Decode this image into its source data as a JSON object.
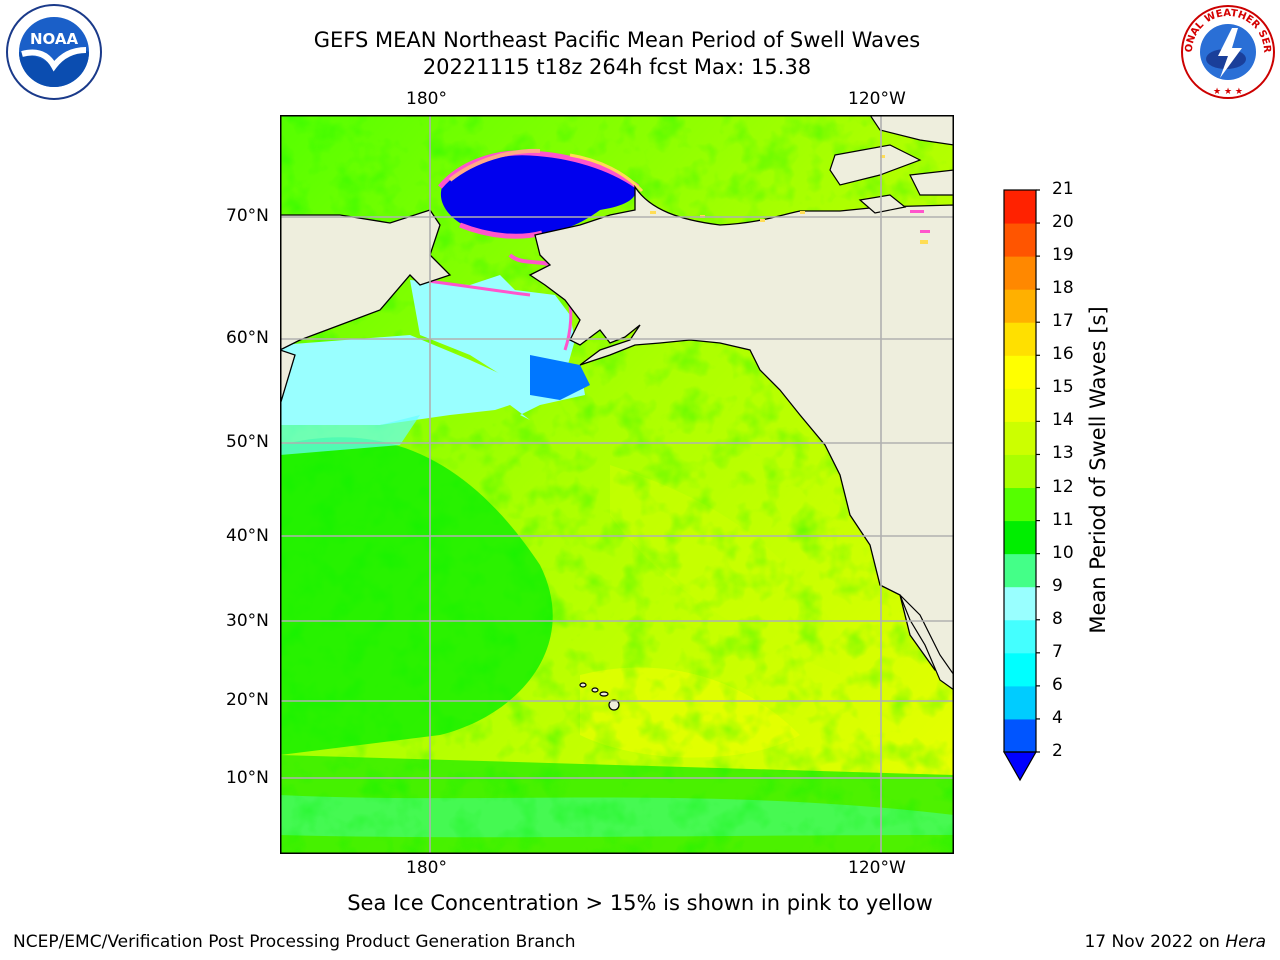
{
  "header": {
    "title_line1": "GEFS MEAN Northeast Pacific Mean Period of Swell Waves",
    "title_line2": "20221115 t18z 264h fcst   Max: 15.38"
  },
  "logos": {
    "left": {
      "icon": "noaa-logo",
      "text": "NOAA"
    },
    "right": {
      "icon": "national-weather-service-logo",
      "text": "NATIONAL WEATHER SERVICE"
    }
  },
  "map": {
    "lon_labels_top": [
      "180°",
      "120°W"
    ],
    "lon_labels_bottom": [
      "180°",
      "120°W"
    ],
    "lat_labels": [
      "70°N",
      "60°N",
      "50°N",
      "40°N",
      "30°N",
      "20°N",
      "10°N"
    ],
    "land_color": "#eeeedd",
    "ice_colors": [
      "#ff66cc",
      "#ffaa88",
      "#ffdd55"
    ]
  },
  "colorbar": {
    "title": "Mean Period of Swell Waves [s]",
    "ticks": [
      "2",
      "4",
      "6",
      "7",
      "8",
      "9",
      "10",
      "11",
      "12",
      "13",
      "14",
      "15",
      "16",
      "17",
      "18",
      "19",
      "20",
      "21"
    ],
    "colors": [
      "#0055ff",
      "#00ccff",
      "#00ffff",
      "#44ffff",
      "#99ffff",
      "#44ff88",
      "#00ee00",
      "#55ff00",
      "#aaff00",
      "#ccff00",
      "#eeff00",
      "#ffff00",
      "#ffe000",
      "#ffb000",
      "#ff8800",
      "#ff5500",
      "#ff2200"
    ],
    "extend_color": "#0000ff"
  },
  "footer": {
    "note": "Sea Ice Concentration > 15% is shown in pink to yellow",
    "left": "NCEP/EMC/Verification Post Processing Product Generation Branch",
    "right_date": "17 Nov 2022 on ",
    "right_host": "Hera"
  }
}
